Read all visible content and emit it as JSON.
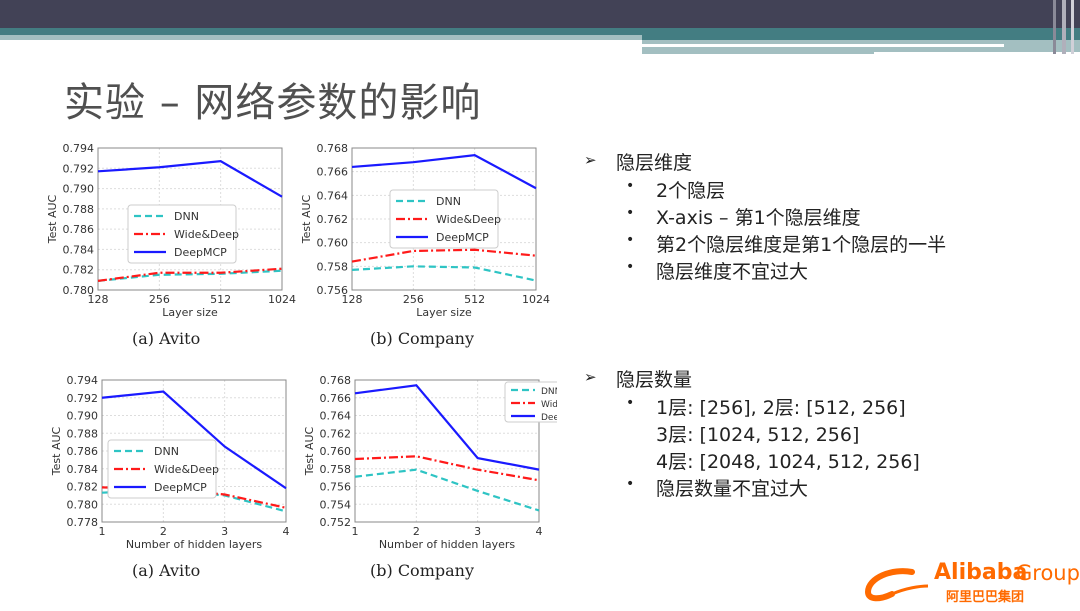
{
  "title": "实验 – 网络参数的影响",
  "colors": {
    "header_dark": "#424256",
    "header_teal": "#437d82",
    "dnn": "#2ec4c4",
    "widedeep": "#ff1a1a",
    "deepmcp": "#1a1aff",
    "logo": "#ff6a00"
  },
  "sections": [
    {
      "heading": "隐层维度",
      "bullets": [
        "2个隐层",
        "X-axis – 第1个隐层维度",
        "第2个隐层维度是第1个隐层的一半",
        "隐层维度不宜过大"
      ]
    },
    {
      "heading": "隐层数量",
      "bullets": [
        "1层: [256], 2层: [512, 256]",
        "3层: [1024, 512, 256]",
        "4层: [2048, 1024, 512, 256]",
        "隐层数量不宜过大"
      ]
    }
  ],
  "logo": {
    "brand": "Alibaba",
    "group": "Group",
    "cn": "阿里巴巴集团"
  },
  "chart_data": [
    {
      "type": "line",
      "caption": "(a) Avito",
      "xlabel": "Layer size",
      "ylabel": "Test AUC",
      "x": [
        "128",
        "256",
        "512",
        "1024"
      ],
      "ylim": [
        0.78,
        0.794
      ],
      "yticks": [
        "0.780",
        "0.782",
        "0.784",
        "0.786",
        "0.788",
        "0.790",
        "0.792",
        "0.794"
      ],
      "grid": true,
      "legend": "center-left",
      "series": [
        {
          "name": "DNN",
          "values": [
            0.7809,
            0.7815,
            0.7816,
            0.7819
          ]
        },
        {
          "name": "Wide&Deep",
          "values": [
            0.7809,
            0.7817,
            0.7817,
            0.7821
          ]
        },
        {
          "name": "DeepMCP",
          "values": [
            0.7917,
            0.7921,
            0.7927,
            0.7892
          ]
        }
      ]
    },
    {
      "type": "line",
      "caption": "(b) Company",
      "xlabel": "Layer size",
      "ylabel": "Test AUC",
      "x": [
        "128",
        "256",
        "512",
        "1024"
      ],
      "ylim": [
        0.756,
        0.768
      ],
      "yticks": [
        "0.756",
        "0.758",
        "0.760",
        "0.762",
        "0.764",
        "0.766",
        "0.768"
      ],
      "grid": true,
      "legend": "center",
      "series": [
        {
          "name": "DNN",
          "values": [
            0.7577,
            0.758,
            0.7579,
            0.7568
          ]
        },
        {
          "name": "Wide&Deep",
          "values": [
            0.7584,
            0.7593,
            0.7594,
            0.7589
          ]
        },
        {
          "name": "DeepMCP",
          "values": [
            0.7664,
            0.7668,
            0.7674,
            0.7646
          ]
        }
      ]
    },
    {
      "type": "line",
      "caption": "(a) Avito",
      "xlabel": "Number of hidden layers",
      "ylabel": "Test AUC",
      "x": [
        "1",
        "2",
        "3",
        "4"
      ],
      "ylim": [
        0.778,
        0.794
      ],
      "yticks": [
        "0.778",
        "0.780",
        "0.782",
        "0.784",
        "0.786",
        "0.788",
        "0.790",
        "0.792",
        "0.794"
      ],
      "grid": true,
      "legend": "center-left",
      "series": [
        {
          "name": "DNN",
          "values": [
            0.7813,
            0.7816,
            0.781,
            0.7792
          ]
        },
        {
          "name": "Wide&Deep",
          "values": [
            0.7819,
            0.7817,
            0.7811,
            0.7796
          ]
        },
        {
          "name": "DeepMCP",
          "values": [
            0.792,
            0.7927,
            0.7865,
            0.7818
          ]
        }
      ]
    },
    {
      "type": "line",
      "caption": "(b) Company",
      "xlabel": "Number of hidden layers",
      "ylabel": "Test AUC",
      "x": [
        "1",
        "2",
        "3",
        "4"
      ],
      "ylim": [
        0.752,
        0.768
      ],
      "yticks": [
        "0.752",
        "0.754",
        "0.756",
        "0.758",
        "0.760",
        "0.762",
        "0.764",
        "0.766",
        "0.768"
      ],
      "grid": true,
      "legend": "top-right",
      "series": [
        {
          "name": "DNN",
          "values": [
            0.7571,
            0.7579,
            0.7555,
            0.7533
          ]
        },
        {
          "name": "Wide&Deep",
          "values": [
            0.7591,
            0.7594,
            0.7579,
            0.7567
          ]
        },
        {
          "name": "DeepMCP",
          "values": [
            0.7665,
            0.7674,
            0.7592,
            0.7579
          ]
        }
      ]
    }
  ]
}
